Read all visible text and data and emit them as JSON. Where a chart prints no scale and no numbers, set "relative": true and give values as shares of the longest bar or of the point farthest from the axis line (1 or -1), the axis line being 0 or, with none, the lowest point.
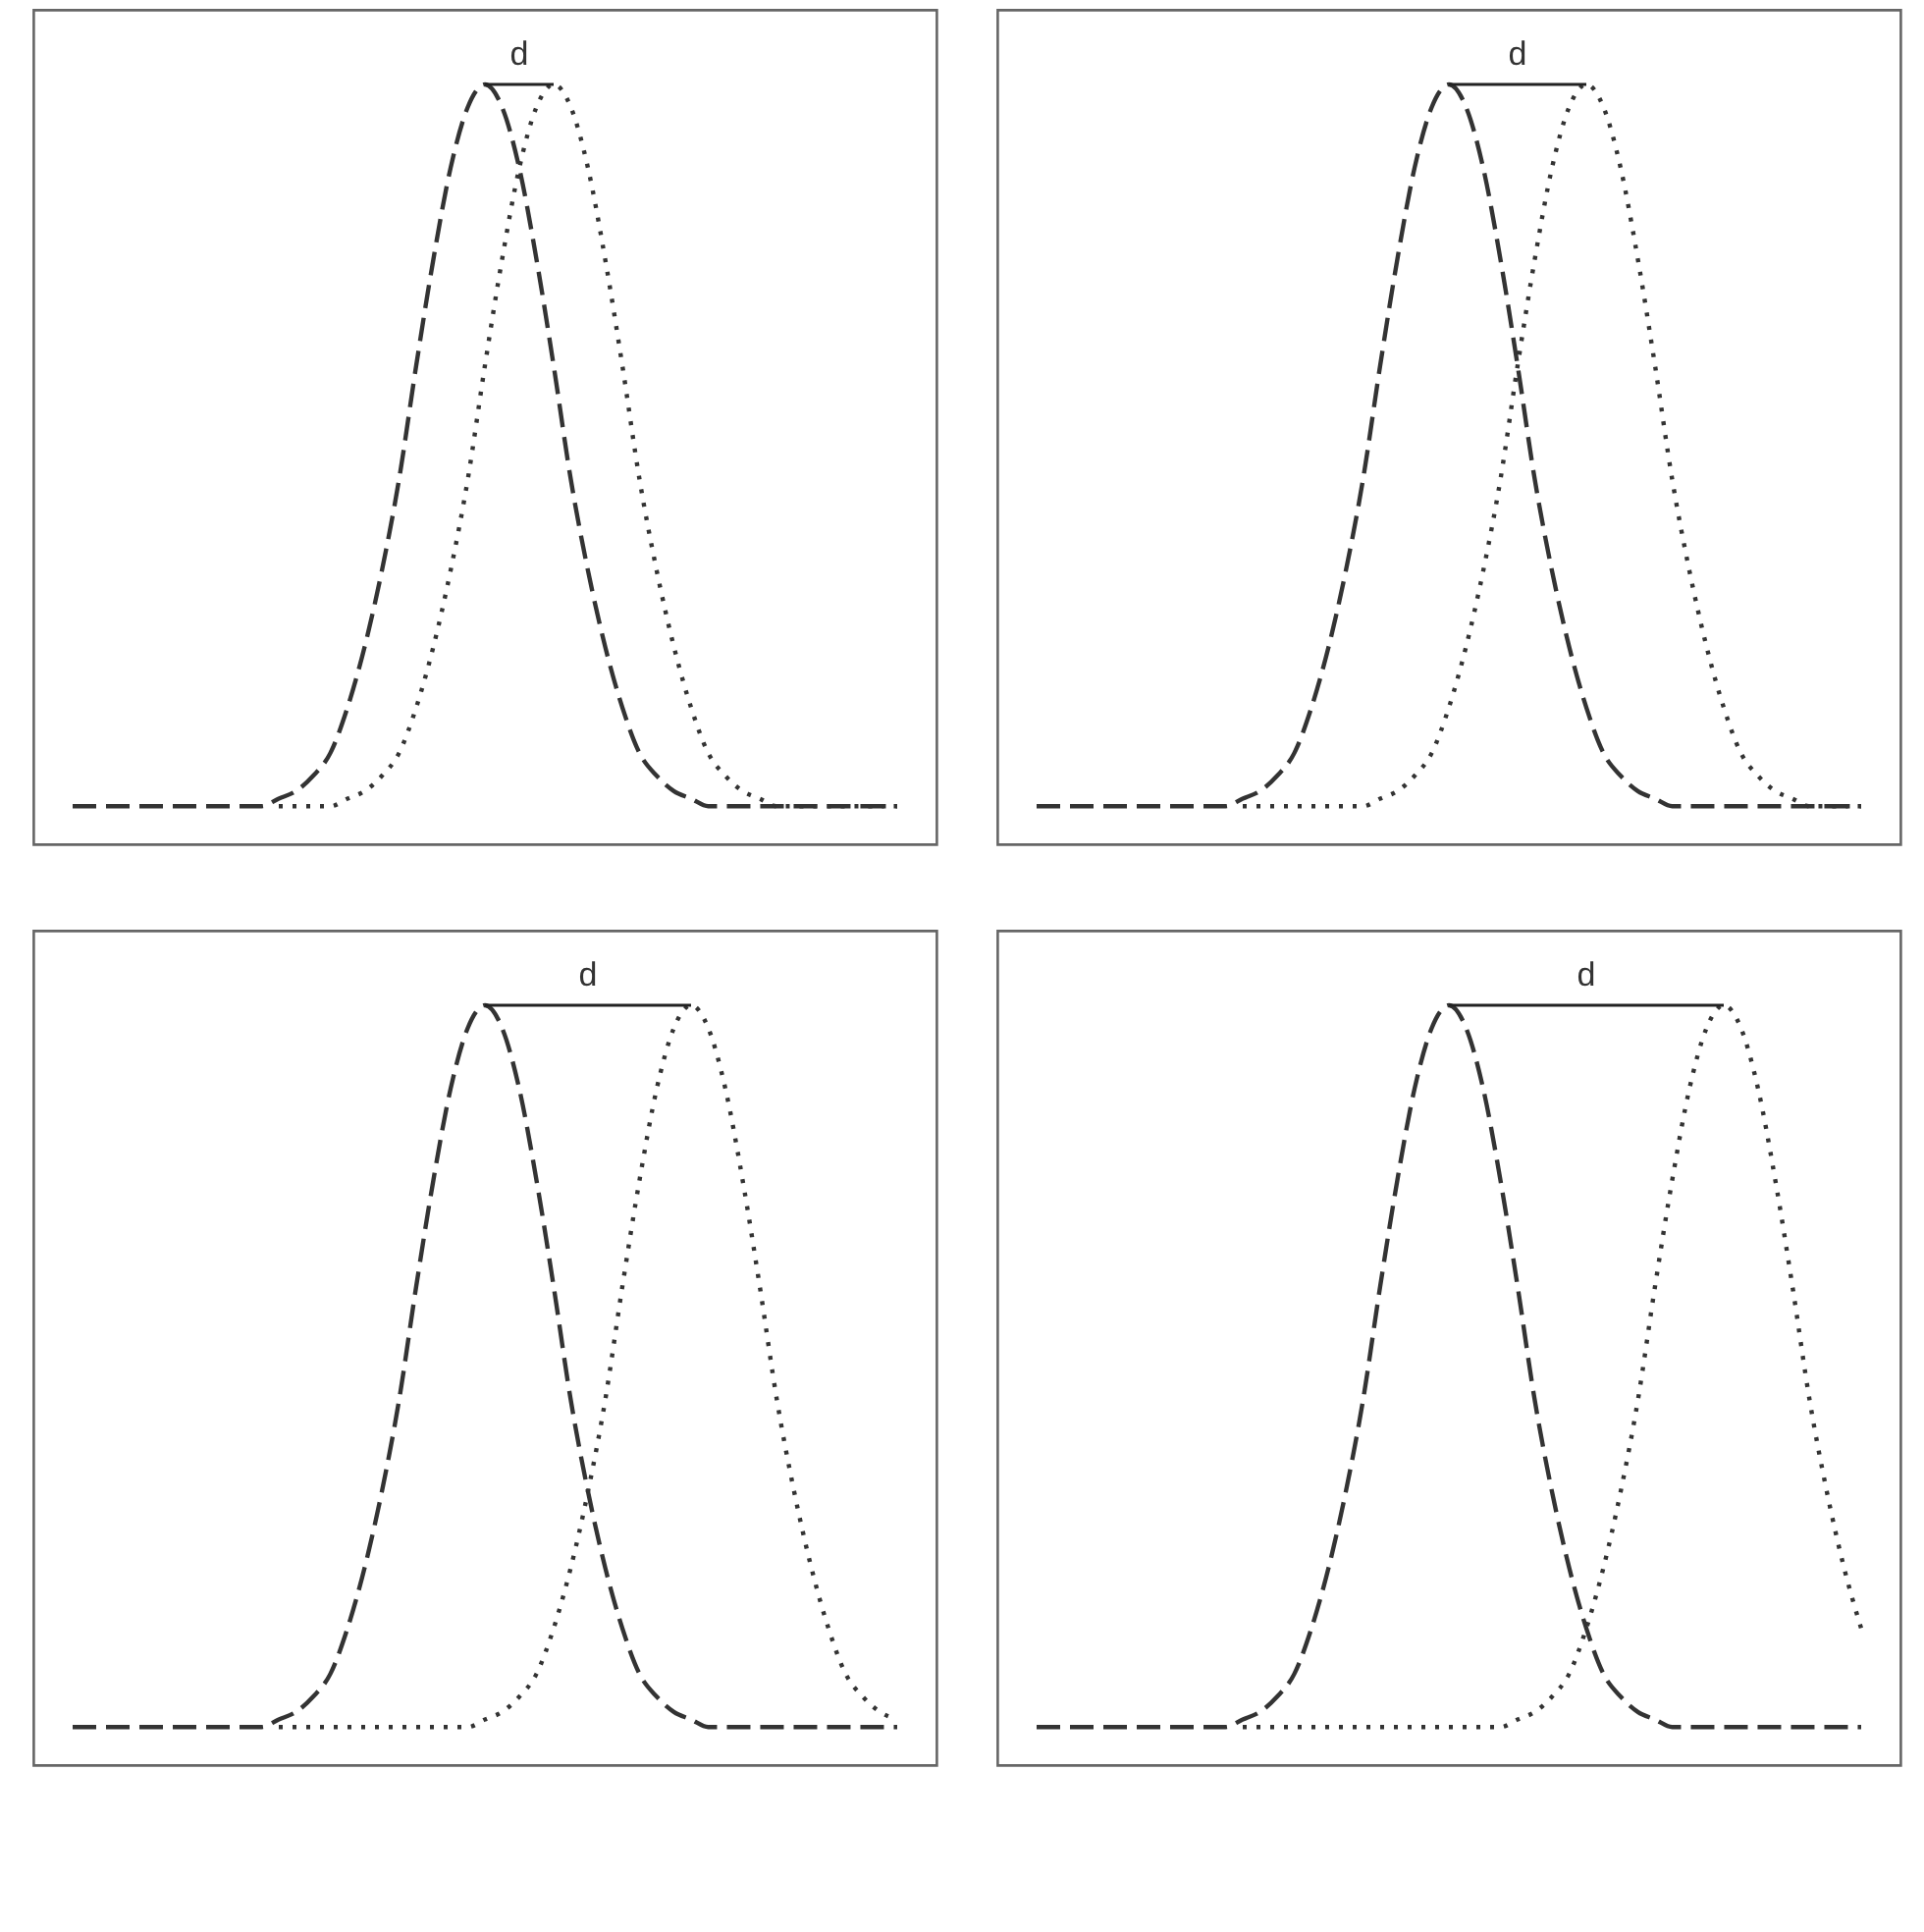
{
  "chart_data": [
    {
      "type": "line",
      "relative": true,
      "categories": [
        null,
        null,
        null,
        null,
        null,
        null,
        null,
        null,
        null,
        null,
        null,
        null,
        null,
        null,
        null,
        null,
        null,
        null,
        null,
        null,
        null,
        null,
        null,
        null,
        null,
        null,
        null,
        null,
        null,
        null,
        null,
        null,
        null,
        null,
        null,
        null,
        null,
        null,
        null,
        null,
        null,
        null,
        null,
        null,
        null,
        null,
        null,
        null,
        null
      ],
      "series": [
        {
          "color": "#333333",
          "line_style": "dashed",
          "values": [
            0.05,
            0.05,
            0.05,
            0.05,
            0.05,
            0.05,
            0.05,
            0.05,
            0.05,
            0.05,
            0.05,
            0.05,
            0.06,
            0.07,
            0.09,
            0.12,
            0.18,
            0.26,
            0.36,
            0.48,
            0.63,
            0.77,
            0.89,
            0.97,
            1,
            0.97,
            0.89,
            0.77,
            0.63,
            0.48,
            0.36,
            0.26,
            0.18,
            0.12,
            0.09,
            0.07,
            0.06,
            0.05,
            0.05,
            0.05,
            0.05,
            0.05,
            0.05,
            0.05,
            0.05,
            0.05,
            0.05,
            0.05,
            0.05
          ]
        },
        {
          "color": "#333333",
          "line_style": "dotted",
          "values": [
            null,
            null,
            null,
            null,
            null,
            null,
            null,
            null,
            null,
            null,
            null,
            null,
            0.05,
            0.05,
            0.05,
            0.05,
            0.06,
            0.07,
            0.09,
            0.12,
            0.18,
            0.26,
            0.36,
            0.48,
            0.63,
            0.77,
            0.89,
            0.97,
            1,
            0.97,
            0.89,
            0.77,
            0.63,
            0.48,
            0.36,
            0.26,
            0.18,
            0.12,
            0.09,
            0.07,
            0.06,
            0.05,
            0.05,
            0.05,
            0.05,
            0.05,
            0.05,
            0.05,
            0.05
          ]
        }
      ],
      "annotations": [
        "d"
      ]
    },
    {
      "type": "line",
      "relative": true,
      "categories": [
        null,
        null,
        null,
        null,
        null,
        null,
        null,
        null,
        null,
        null,
        null,
        null,
        null,
        null,
        null,
        null,
        null,
        null,
        null,
        null,
        null,
        null,
        null,
        null,
        null,
        null,
        null,
        null,
        null,
        null,
        null,
        null,
        null,
        null,
        null,
        null,
        null,
        null,
        null,
        null,
        null,
        null,
        null,
        null,
        null,
        null,
        null,
        null,
        null
      ],
      "series": [
        {
          "color": "#333333",
          "line_style": "dashed",
          "values": [
            0.05,
            0.05,
            0.05,
            0.05,
            0.05,
            0.05,
            0.05,
            0.05,
            0.05,
            0.05,
            0.05,
            0.05,
            0.06,
            0.07,
            0.09,
            0.12,
            0.18,
            0.26,
            0.36,
            0.48,
            0.63,
            0.77,
            0.89,
            0.97,
            1,
            0.97,
            0.89,
            0.77,
            0.63,
            0.48,
            0.36,
            0.26,
            0.18,
            0.12,
            0.09,
            0.07,
            0.06,
            0.05,
            0.05,
            0.05,
            0.05,
            0.05,
            0.05,
            0.05,
            0.05,
            0.05,
            0.05,
            0.05,
            0.05
          ]
        },
        {
          "color": "#333333",
          "line_style": "dotted",
          "values": [
            null,
            null,
            null,
            null,
            null,
            null,
            null,
            null,
            null,
            null,
            null,
            null,
            0.05,
            0.05,
            0.05,
            0.05,
            0.05,
            0.05,
            0.05,
            0.05,
            0.06,
            0.07,
            0.09,
            0.12,
            0.18,
            0.26,
            0.36,
            0.48,
            0.63,
            0.77,
            0.89,
            0.97,
            1,
            0.97,
            0.89,
            0.77,
            0.63,
            0.48,
            0.36,
            0.26,
            0.18,
            0.12,
            0.09,
            0.07,
            0.06,
            0.05,
            0.05,
            0.05,
            0.05
          ]
        }
      ],
      "annotations": [
        "d"
      ]
    },
    {
      "type": "line",
      "relative": true,
      "categories": [
        null,
        null,
        null,
        null,
        null,
        null,
        null,
        null,
        null,
        null,
        null,
        null,
        null,
        null,
        null,
        null,
        null,
        null,
        null,
        null,
        null,
        null,
        null,
        null,
        null,
        null,
        null,
        null,
        null,
        null,
        null,
        null,
        null,
        null,
        null,
        null,
        null,
        null,
        null,
        null,
        null,
        null,
        null,
        null,
        null,
        null,
        null,
        null,
        null
      ],
      "series": [
        {
          "color": "#333333",
          "line_style": "dashed",
          "values": [
            0.05,
            0.05,
            0.05,
            0.05,
            0.05,
            0.05,
            0.05,
            0.05,
            0.05,
            0.05,
            0.05,
            0.05,
            0.06,
            0.07,
            0.09,
            0.12,
            0.18,
            0.26,
            0.36,
            0.48,
            0.63,
            0.77,
            0.89,
            0.97,
            1,
            0.97,
            0.89,
            0.77,
            0.63,
            0.48,
            0.36,
            0.26,
            0.18,
            0.12,
            0.09,
            0.07,
            0.06,
            0.05,
            0.05,
            0.05,
            0.05,
            0.05,
            0.05,
            0.05,
            0.05,
            0.05,
            0.05,
            0.05,
            0.05
          ]
        },
        {
          "color": "#333333",
          "line_style": "dotted",
          "values": [
            null,
            null,
            null,
            null,
            null,
            null,
            null,
            null,
            null,
            null,
            null,
            null,
            0.05,
            0.05,
            0.05,
            0.05,
            0.05,
            0.05,
            0.05,
            0.05,
            0.05,
            0.05,
            0.05,
            0.05,
            0.06,
            0.07,
            0.09,
            0.12,
            0.18,
            0.26,
            0.36,
            0.48,
            0.63,
            0.77,
            0.89,
            0.97,
            1,
            0.97,
            0.89,
            0.77,
            0.63,
            0.48,
            0.36,
            0.26,
            0.18,
            0.12,
            0.09,
            0.07,
            0.06
          ]
        }
      ],
      "annotations": [
        "d"
      ]
    },
    {
      "type": "line",
      "relative": true,
      "categories": [
        null,
        null,
        null,
        null,
        null,
        null,
        null,
        null,
        null,
        null,
        null,
        null,
        null,
        null,
        null,
        null,
        null,
        null,
        null,
        null,
        null,
        null,
        null,
        null,
        null,
        null,
        null,
        null,
        null,
        null,
        null,
        null,
        null,
        null,
        null,
        null,
        null,
        null,
        null,
        null,
        null,
        null,
        null,
        null,
        null,
        null,
        null,
        null,
        null
      ],
      "series": [
        {
          "color": "#333333",
          "line_style": "dashed",
          "values": [
            0.05,
            0.05,
            0.05,
            0.05,
            0.05,
            0.05,
            0.05,
            0.05,
            0.05,
            0.05,
            0.05,
            0.05,
            0.06,
            0.07,
            0.09,
            0.12,
            0.18,
            0.26,
            0.36,
            0.48,
            0.63,
            0.77,
            0.89,
            0.97,
            1,
            0.97,
            0.89,
            0.77,
            0.63,
            0.48,
            0.36,
            0.26,
            0.18,
            0.12,
            0.09,
            0.07,
            0.06,
            0.05,
            0.05,
            0.05,
            0.05,
            0.05,
            0.05,
            0.05,
            0.05,
            0.05,
            0.05,
            0.05,
            0.05
          ]
        },
        {
          "color": "#333333",
          "line_style": "dotted",
          "values": [
            null,
            null,
            null,
            null,
            null,
            null,
            null,
            null,
            null,
            null,
            null,
            null,
            0.05,
            0.05,
            0.05,
            0.05,
            0.05,
            0.05,
            0.05,
            0.05,
            0.05,
            0.05,
            0.05,
            0.05,
            0.05,
            0.05,
            0.05,
            0.05,
            0.06,
            0.07,
            0.09,
            0.12,
            0.18,
            0.26,
            0.36,
            0.48,
            0.63,
            0.77,
            0.89,
            0.97,
            1,
            0.97,
            0.89,
            0.77,
            0.63,
            0.48,
            0.36,
            0.26,
            0.18
          ]
        }
      ],
      "annotations": [
        "d"
      ]
    }
  ]
}
